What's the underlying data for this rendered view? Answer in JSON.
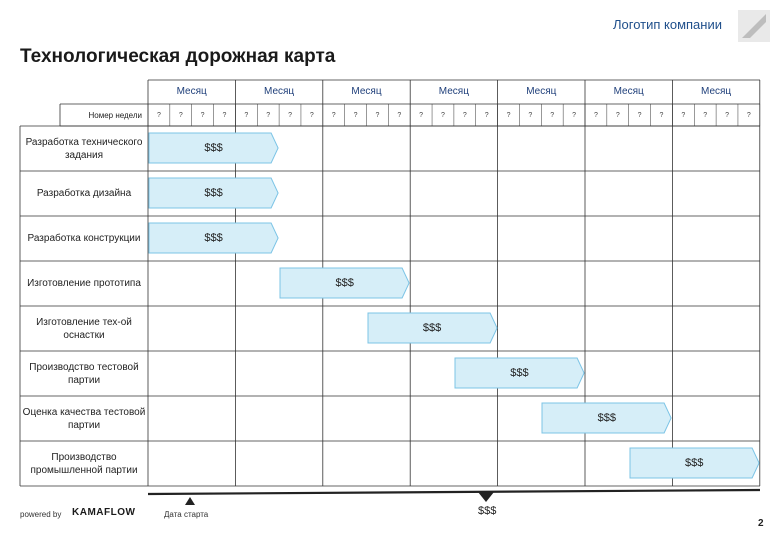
{
  "header": {
    "logo_text": "Логотип компании"
  },
  "title": "Технологическая дорожная карта",
  "months": [
    "Месяц",
    "Месяц",
    "Месяц",
    "Месяц",
    "Месяц",
    "Месяц",
    "Месяц"
  ],
  "week_label": "Номер недели",
  "week_mark": "?",
  "tasks": [
    {
      "label": "Разработка технического задания",
      "cost": "$$$",
      "start_week": 1,
      "weeks": 6
    },
    {
      "label": "Разработка дизайна",
      "cost": "$$$",
      "start_week": 1,
      "weeks": 6
    },
    {
      "label": "Разработка конструкции",
      "cost": "$$$",
      "start_week": 1,
      "weeks": 6
    },
    {
      "label": "Изготовление прототипа",
      "cost": "$$$",
      "start_week": 7,
      "weeks": 6
    },
    {
      "label": "Изготовление тех-ой оснастки",
      "cost": "$$$",
      "start_week": 11,
      "weeks": 6
    },
    {
      "label": "Производство тестовой партии",
      "cost": "$$$",
      "start_week": 15,
      "weeks": 6
    },
    {
      "label": "Оценка качества тестовой партии",
      "cost": "$$$",
      "start_week": 19,
      "weeks": 6
    },
    {
      "label": "Производство промышленной партии",
      "cost": "$$$",
      "start_week": 23,
      "weeks": 6
    }
  ],
  "footer": {
    "powered_by": "powered by",
    "brand": "KAMAFLOW",
    "start_label": "Дата старта",
    "end_cost": "$$$",
    "page_number": "2"
  },
  "colors": {
    "bar_fill": "#d6eef8",
    "bar_stroke": "#7cc4e6",
    "grid": "#333333",
    "title_blue": "#1f4f8b"
  }
}
